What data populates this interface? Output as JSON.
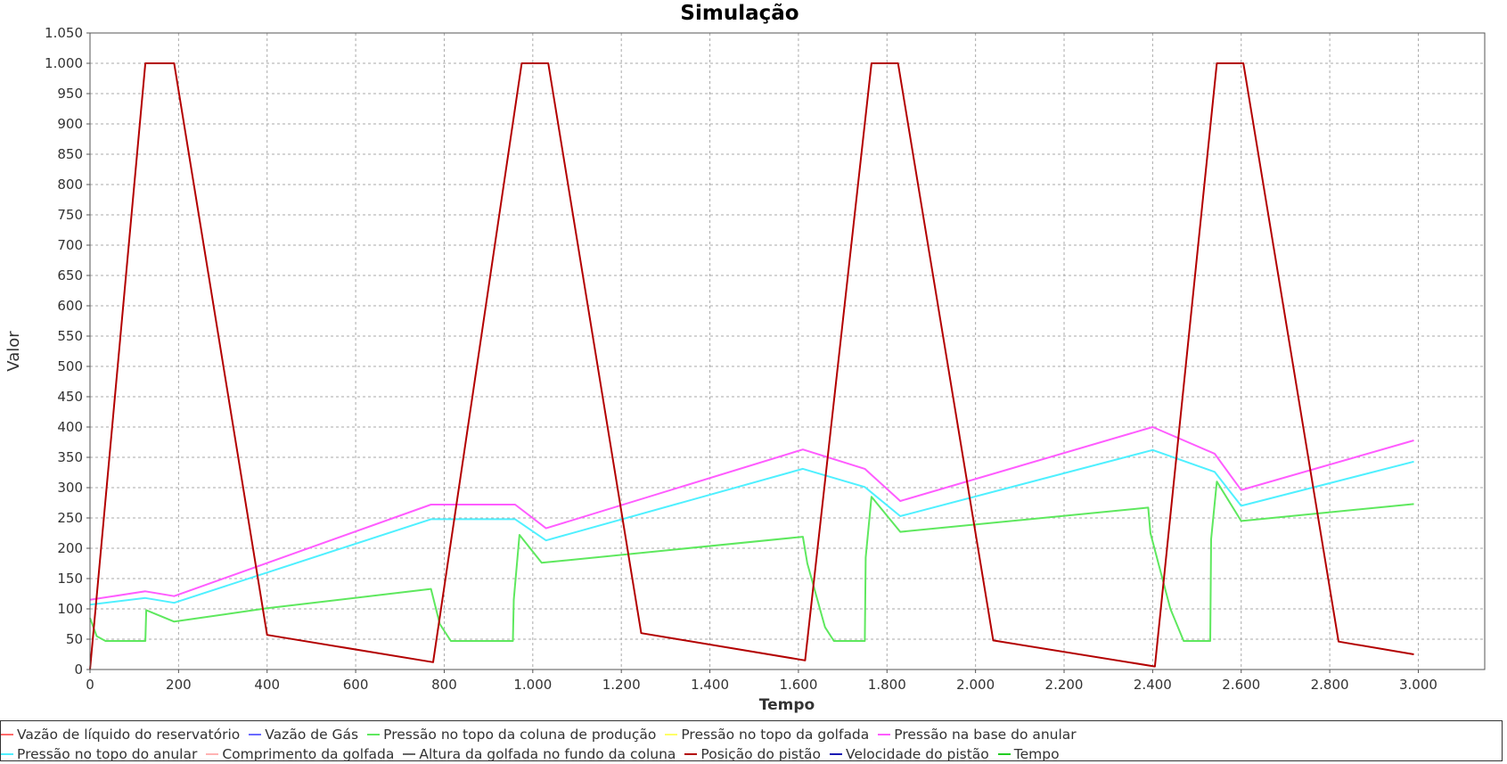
{
  "chart_data": {
    "type": "line",
    "title": "Simulação",
    "xlabel": "Tempo",
    "ylabel": "Valor",
    "xlim": [
      0,
      3150
    ],
    "ylim": [
      0,
      1050
    ],
    "grid": true,
    "legend_position": "bottom",
    "x_ticks": [
      0,
      200,
      400,
      600,
      800,
      1000,
      1200,
      1400,
      1600,
      1800,
      2000,
      2200,
      2400,
      2600,
      2800,
      3000
    ],
    "x_tick_labels": [
      "0",
      "200",
      "400",
      "600",
      "800",
      "1.000",
      "1.200",
      "1.400",
      "1.600",
      "1.800",
      "2.000",
      "2.200",
      "2.400",
      "2.600",
      "2.800",
      "3.000"
    ],
    "y_ticks": [
      0,
      50,
      100,
      150,
      200,
      250,
      300,
      350,
      400,
      450,
      500,
      550,
      600,
      650,
      700,
      750,
      800,
      850,
      900,
      950,
      1000,
      1050
    ],
    "y_tick_labels": [
      "0",
      "50",
      "100",
      "150",
      "200",
      "250",
      "300",
      "350",
      "400",
      "450",
      "500",
      "550",
      "600",
      "650",
      "700",
      "750",
      "800",
      "850",
      "900",
      "950",
      "1.000",
      "1.050"
    ],
    "series": [
      {
        "name": "Vazão de líquido do reservatório",
        "color": "#ff6a6a",
        "points": []
      },
      {
        "name": "Vazão de Gás",
        "color": "#6a6aff",
        "points": []
      },
      {
        "name": "Pressão no topo da coluna de produção",
        "color": "#5ee85e",
        "points": [
          [
            0,
            85
          ],
          [
            15,
            55
          ],
          [
            35,
            47
          ],
          [
            125,
            47
          ],
          [
            127,
            98
          ],
          [
            190,
            79
          ],
          [
            400,
            101
          ],
          [
            770,
            133
          ],
          [
            790,
            75
          ],
          [
            815,
            47
          ],
          [
            955,
            47
          ],
          [
            957,
            115
          ],
          [
            970,
            222
          ],
          [
            1020,
            176
          ],
          [
            1610,
            219
          ],
          [
            1620,
            175
          ],
          [
            1660,
            70
          ],
          [
            1680,
            47
          ],
          [
            1750,
            47
          ],
          [
            1752,
            185
          ],
          [
            1765,
            285
          ],
          [
            1830,
            227
          ],
          [
            2390,
            267
          ],
          [
            2395,
            225
          ],
          [
            2440,
            100
          ],
          [
            2470,
            47
          ],
          [
            2530,
            47
          ],
          [
            2532,
            215
          ],
          [
            2545,
            310
          ],
          [
            2600,
            245
          ],
          [
            2990,
            273
          ]
        ]
      },
      {
        "name": "Pressão no topo da golfada",
        "color": "#ffff66",
        "points": []
      },
      {
        "name": "Pressão na base do anular",
        "color": "#ff5cff",
        "points": [
          [
            0,
            115
          ],
          [
            125,
            129
          ],
          [
            190,
            121
          ],
          [
            770,
            272
          ],
          [
            960,
            272
          ],
          [
            1030,
            233
          ],
          [
            1610,
            363
          ],
          [
            1750,
            331
          ],
          [
            1830,
            278
          ],
          [
            2400,
            400
          ],
          [
            2540,
            356
          ],
          [
            2600,
            296
          ],
          [
            2990,
            378
          ]
        ]
      },
      {
        "name": "Pressão no topo do anular",
        "color": "#4ff0ff",
        "points": [
          [
            0,
            107
          ],
          [
            125,
            118
          ],
          [
            190,
            110
          ],
          [
            770,
            248
          ],
          [
            960,
            248
          ],
          [
            1030,
            213
          ],
          [
            1610,
            331
          ],
          [
            1750,
            301
          ],
          [
            1830,
            253
          ],
          [
            2400,
            362
          ],
          [
            2540,
            326
          ],
          [
            2600,
            270
          ],
          [
            2990,
            343
          ]
        ]
      },
      {
        "name": "Comprimento da golfada",
        "color": "#ffb3b3",
        "points": []
      },
      {
        "name": "Altura da golfada no fundo da coluna",
        "color": "#666666",
        "points": []
      },
      {
        "name": "Posição do pistão",
        "color": "#b30000",
        "points": [
          [
            0,
            0
          ],
          [
            125,
            1000
          ],
          [
            190,
            1000
          ],
          [
            400,
            57
          ],
          [
            775,
            12
          ],
          [
            975,
            1000
          ],
          [
            1035,
            1000
          ],
          [
            1245,
            60
          ],
          [
            1615,
            15
          ],
          [
            1765,
            1000
          ],
          [
            1825,
            1000
          ],
          [
            2040,
            48
          ],
          [
            2405,
            5
          ],
          [
            2545,
            1000
          ],
          [
            2605,
            1000
          ],
          [
            2820,
            46
          ],
          [
            2990,
            25
          ]
        ]
      },
      {
        "name": "Velocidade do pistão",
        "color": "#1a1ab3",
        "points": []
      },
      {
        "name": "Tempo",
        "color": "#22cc22",
        "points": []
      }
    ]
  }
}
